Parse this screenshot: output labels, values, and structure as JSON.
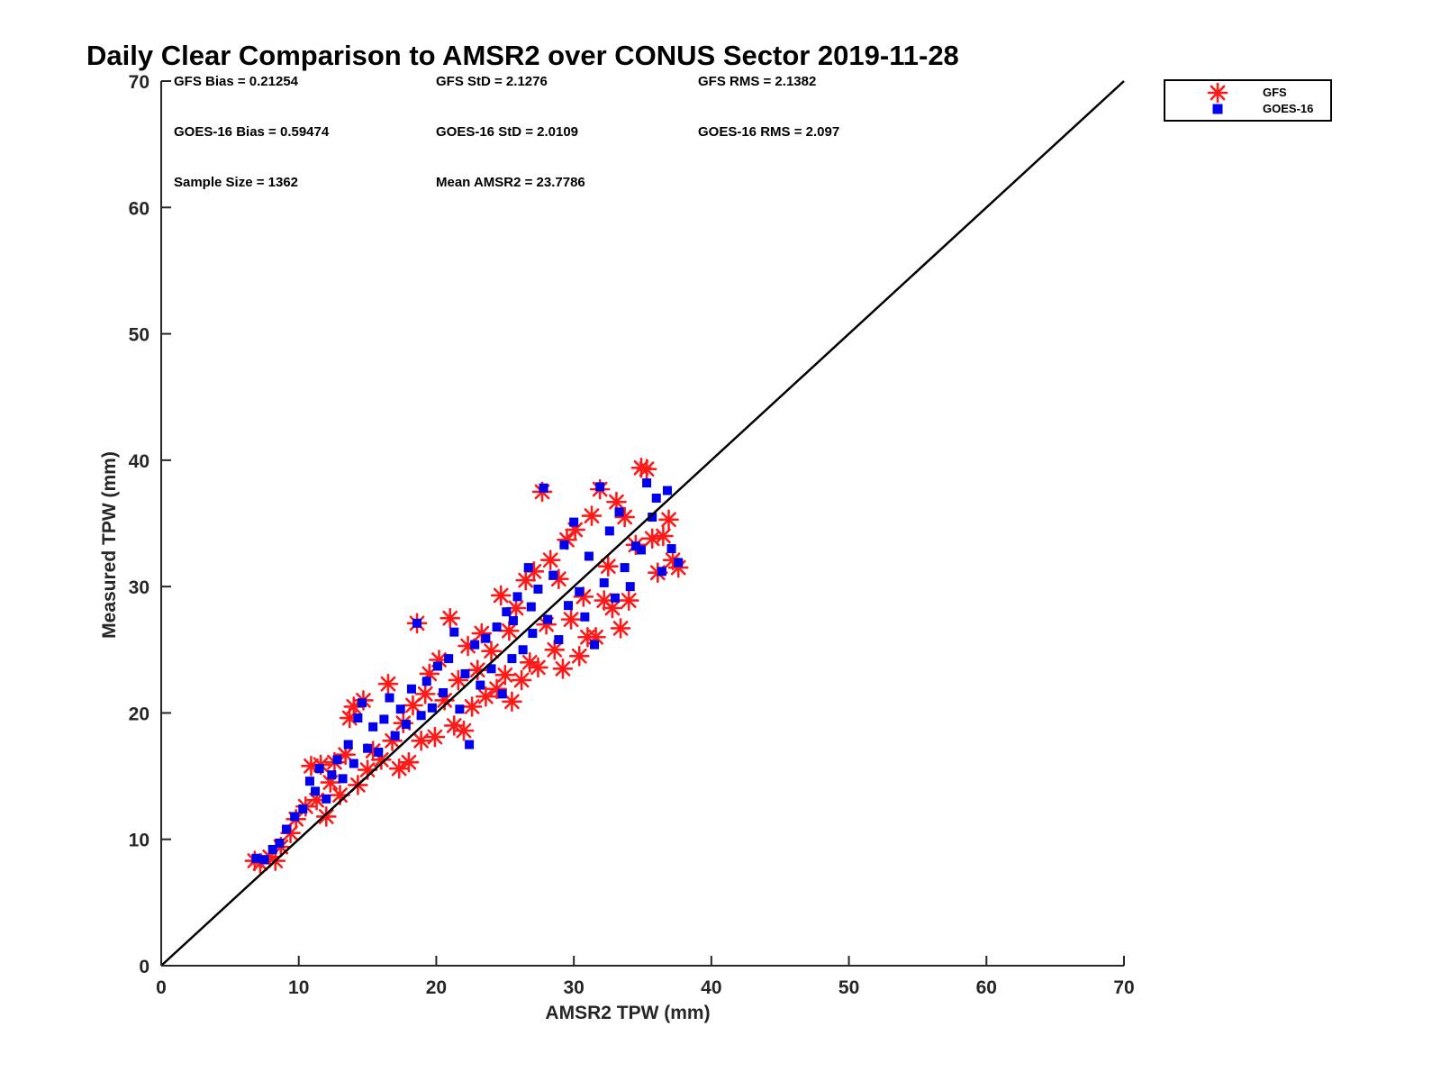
{
  "chart_data": {
    "type": "scatter",
    "title": "Daily Clear Comparison to AMSR2 over CONUS Sector 2019-11-28",
    "xlabel": "AMSR2 TPW (mm)",
    "ylabel": "Measured TPW (mm)",
    "xlim": [
      0,
      70
    ],
    "ylim": [
      0,
      70
    ],
    "xticks": [
      "0",
      "10",
      "20",
      "30",
      "40",
      "50",
      "60",
      "70"
    ],
    "yticks": [
      "0",
      "10",
      "20",
      "30",
      "40",
      "50",
      "60",
      "70"
    ],
    "grid": false,
    "legend_position": "outside-top-right",
    "reference_line": {
      "from": [
        0,
        0
      ],
      "to": [
        70,
        70
      ]
    },
    "stats": [
      {
        "label": "GFS Bias = 0.21254"
      },
      {
        "label": "GFS StD = 2.1276"
      },
      {
        "label": "GFS RMS = 2.1382"
      },
      {
        "label": "GOES-16 Bias = 0.59474"
      },
      {
        "label": "GOES-16 StD = 2.0109"
      },
      {
        "label": "GOES-16 RMS = 2.097"
      },
      {
        "label": "Sample Size = 1362"
      },
      {
        "label": "Mean AMSR2 = 23.7786"
      }
    ],
    "series": [
      {
        "name": "GFS",
        "marker": "asterisk",
        "color": "#ff1a1a",
        "points": [
          [
            6.8,
            8.3
          ],
          [
            7.2,
            8.1
          ],
          [
            7.9,
            8.6
          ],
          [
            8.3,
            8.3
          ],
          [
            8.7,
            9.4
          ],
          [
            9.4,
            10.5
          ],
          [
            9.8,
            11.6
          ],
          [
            10.5,
            12.6
          ],
          [
            10.9,
            15.8
          ],
          [
            11.3,
            13.1
          ],
          [
            11.6,
            15.9
          ],
          [
            12.0,
            11.8
          ],
          [
            12.3,
            14.5
          ],
          [
            12.6,
            16.1
          ],
          [
            13.0,
            13.5
          ],
          [
            13.4,
            16.7
          ],
          [
            13.7,
            19.6
          ],
          [
            14.0,
            20.5
          ],
          [
            14.3,
            14.3
          ],
          [
            14.7,
            21.0
          ],
          [
            15.0,
            15.5
          ],
          [
            15.4,
            17.0
          ],
          [
            16.0,
            16.3
          ],
          [
            16.5,
            22.3
          ],
          [
            16.8,
            17.8
          ],
          [
            17.3,
            15.6
          ],
          [
            17.6,
            19.2
          ],
          [
            18.0,
            16.1
          ],
          [
            18.3,
            20.6
          ],
          [
            18.6,
            27.1
          ],
          [
            18.9,
            17.8
          ],
          [
            19.2,
            21.5
          ],
          [
            19.5,
            23.1
          ],
          [
            19.9,
            18.1
          ],
          [
            20.2,
            24.2
          ],
          [
            20.6,
            21.0
          ],
          [
            21.0,
            27.5
          ],
          [
            21.3,
            19.0
          ],
          [
            21.6,
            22.6
          ],
          [
            22.0,
            18.6
          ],
          [
            22.3,
            25.3
          ],
          [
            22.6,
            20.5
          ],
          [
            23.0,
            23.4
          ],
          [
            23.3,
            26.3
          ],
          [
            23.6,
            21.3
          ],
          [
            24.0,
            24.9
          ],
          [
            24.4,
            21.9
          ],
          [
            24.7,
            29.3
          ],
          [
            25.0,
            23.0
          ],
          [
            25.3,
            26.5
          ],
          [
            25.5,
            20.9
          ],
          [
            25.8,
            28.3
          ],
          [
            26.2,
            22.6
          ],
          [
            26.5,
            30.5
          ],
          [
            26.8,
            24.0
          ],
          [
            27.1,
            31.2
          ],
          [
            27.4,
            23.6
          ],
          [
            27.7,
            37.5
          ],
          [
            28.0,
            27.0
          ],
          [
            28.3,
            32.1
          ],
          [
            28.6,
            25.0
          ],
          [
            28.9,
            30.6
          ],
          [
            29.2,
            23.5
          ],
          [
            29.5,
            33.7
          ],
          [
            29.8,
            27.4
          ],
          [
            30.1,
            34.5
          ],
          [
            30.4,
            24.5
          ],
          [
            30.7,
            29.2
          ],
          [
            31.0,
            26.0
          ],
          [
            31.3,
            35.6
          ],
          [
            31.6,
            26.0
          ],
          [
            31.9,
            37.7
          ],
          [
            32.2,
            28.9
          ],
          [
            32.5,
            31.6
          ],
          [
            32.8,
            28.3
          ],
          [
            33.1,
            36.7
          ],
          [
            33.4,
            26.7
          ],
          [
            33.7,
            35.5
          ],
          [
            34.0,
            28.9
          ],
          [
            34.5,
            33.3
          ],
          [
            34.9,
            39.4
          ],
          [
            35.3,
            39.3
          ],
          [
            35.7,
            33.8
          ],
          [
            36.1,
            31.1
          ],
          [
            36.5,
            34.0
          ],
          [
            36.9,
            35.3
          ],
          [
            37.2,
            32.1
          ],
          [
            37.6,
            31.5
          ]
        ]
      },
      {
        "name": "GOES-16",
        "marker": "square",
        "color": "#0000ee",
        "points": [
          [
            6.9,
            8.5
          ],
          [
            7.5,
            8.4
          ],
          [
            8.1,
            9.2
          ],
          [
            8.6,
            9.7
          ],
          [
            9.1,
            10.8
          ],
          [
            9.7,
            11.8
          ],
          [
            10.3,
            12.4
          ],
          [
            10.8,
            14.6
          ],
          [
            11.2,
            13.8
          ],
          [
            11.5,
            15.6
          ],
          [
            12.0,
            13.2
          ],
          [
            12.4,
            15.1
          ],
          [
            12.8,
            16.3
          ],
          [
            13.2,
            14.8
          ],
          [
            13.6,
            17.5
          ],
          [
            14.0,
            16.0
          ],
          [
            14.3,
            19.6
          ],
          [
            14.6,
            20.8
          ],
          [
            15.0,
            17.2
          ],
          [
            15.4,
            18.9
          ],
          [
            15.8,
            16.9
          ],
          [
            16.2,
            19.5
          ],
          [
            16.6,
            21.2
          ],
          [
            17.0,
            18.2
          ],
          [
            17.4,
            20.3
          ],
          [
            17.8,
            19.1
          ],
          [
            18.2,
            21.9
          ],
          [
            18.6,
            27.1
          ],
          [
            18.9,
            19.8
          ],
          [
            19.3,
            22.5
          ],
          [
            19.7,
            20.4
          ],
          [
            20.1,
            23.7
          ],
          [
            20.5,
            21.6
          ],
          [
            20.9,
            24.3
          ],
          [
            21.3,
            26.4
          ],
          [
            21.7,
            20.3
          ],
          [
            22.1,
            23.1
          ],
          [
            22.4,
            17.5
          ],
          [
            22.8,
            25.4
          ],
          [
            23.2,
            22.2
          ],
          [
            23.6,
            25.9
          ],
          [
            24.0,
            23.5
          ],
          [
            24.4,
            26.8
          ],
          [
            24.8,
            21.5
          ],
          [
            25.1,
            28.0
          ],
          [
            25.5,
            24.3
          ],
          [
            25.9,
            29.2
          ],
          [
            26.3,
            25.0
          ],
          [
            26.7,
            31.5
          ],
          [
            27.0,
            26.3
          ],
          [
            27.4,
            29.8
          ],
          [
            27.8,
            37.8
          ],
          [
            28.1,
            27.4
          ],
          [
            28.5,
            30.9
          ],
          [
            28.9,
            25.8
          ],
          [
            29.3,
            33.3
          ],
          [
            29.6,
            28.5
          ],
          [
            30.0,
            35.1
          ],
          [
            30.4,
            29.6
          ],
          [
            30.8,
            27.6
          ],
          [
            31.1,
            32.4
          ],
          [
            31.5,
            25.4
          ],
          [
            31.9,
            37.9
          ],
          [
            32.2,
            30.3
          ],
          [
            32.6,
            34.4
          ],
          [
            33.0,
            29.1
          ],
          [
            33.3,
            35.9
          ],
          [
            33.7,
            31.5
          ],
          [
            34.1,
            30.0
          ],
          [
            34.5,
            33.2
          ],
          [
            34.9,
            32.9
          ],
          [
            35.3,
            38.2
          ],
          [
            35.7,
            35.5
          ],
          [
            36.0,
            37.0
          ],
          [
            36.4,
            31.2
          ],
          [
            36.8,
            37.6
          ],
          [
            37.1,
            33.0
          ],
          [
            37.6,
            31.9
          ],
          [
            25.6,
            27.3
          ],
          [
            26.9,
            28.4
          ]
        ]
      }
    ]
  }
}
